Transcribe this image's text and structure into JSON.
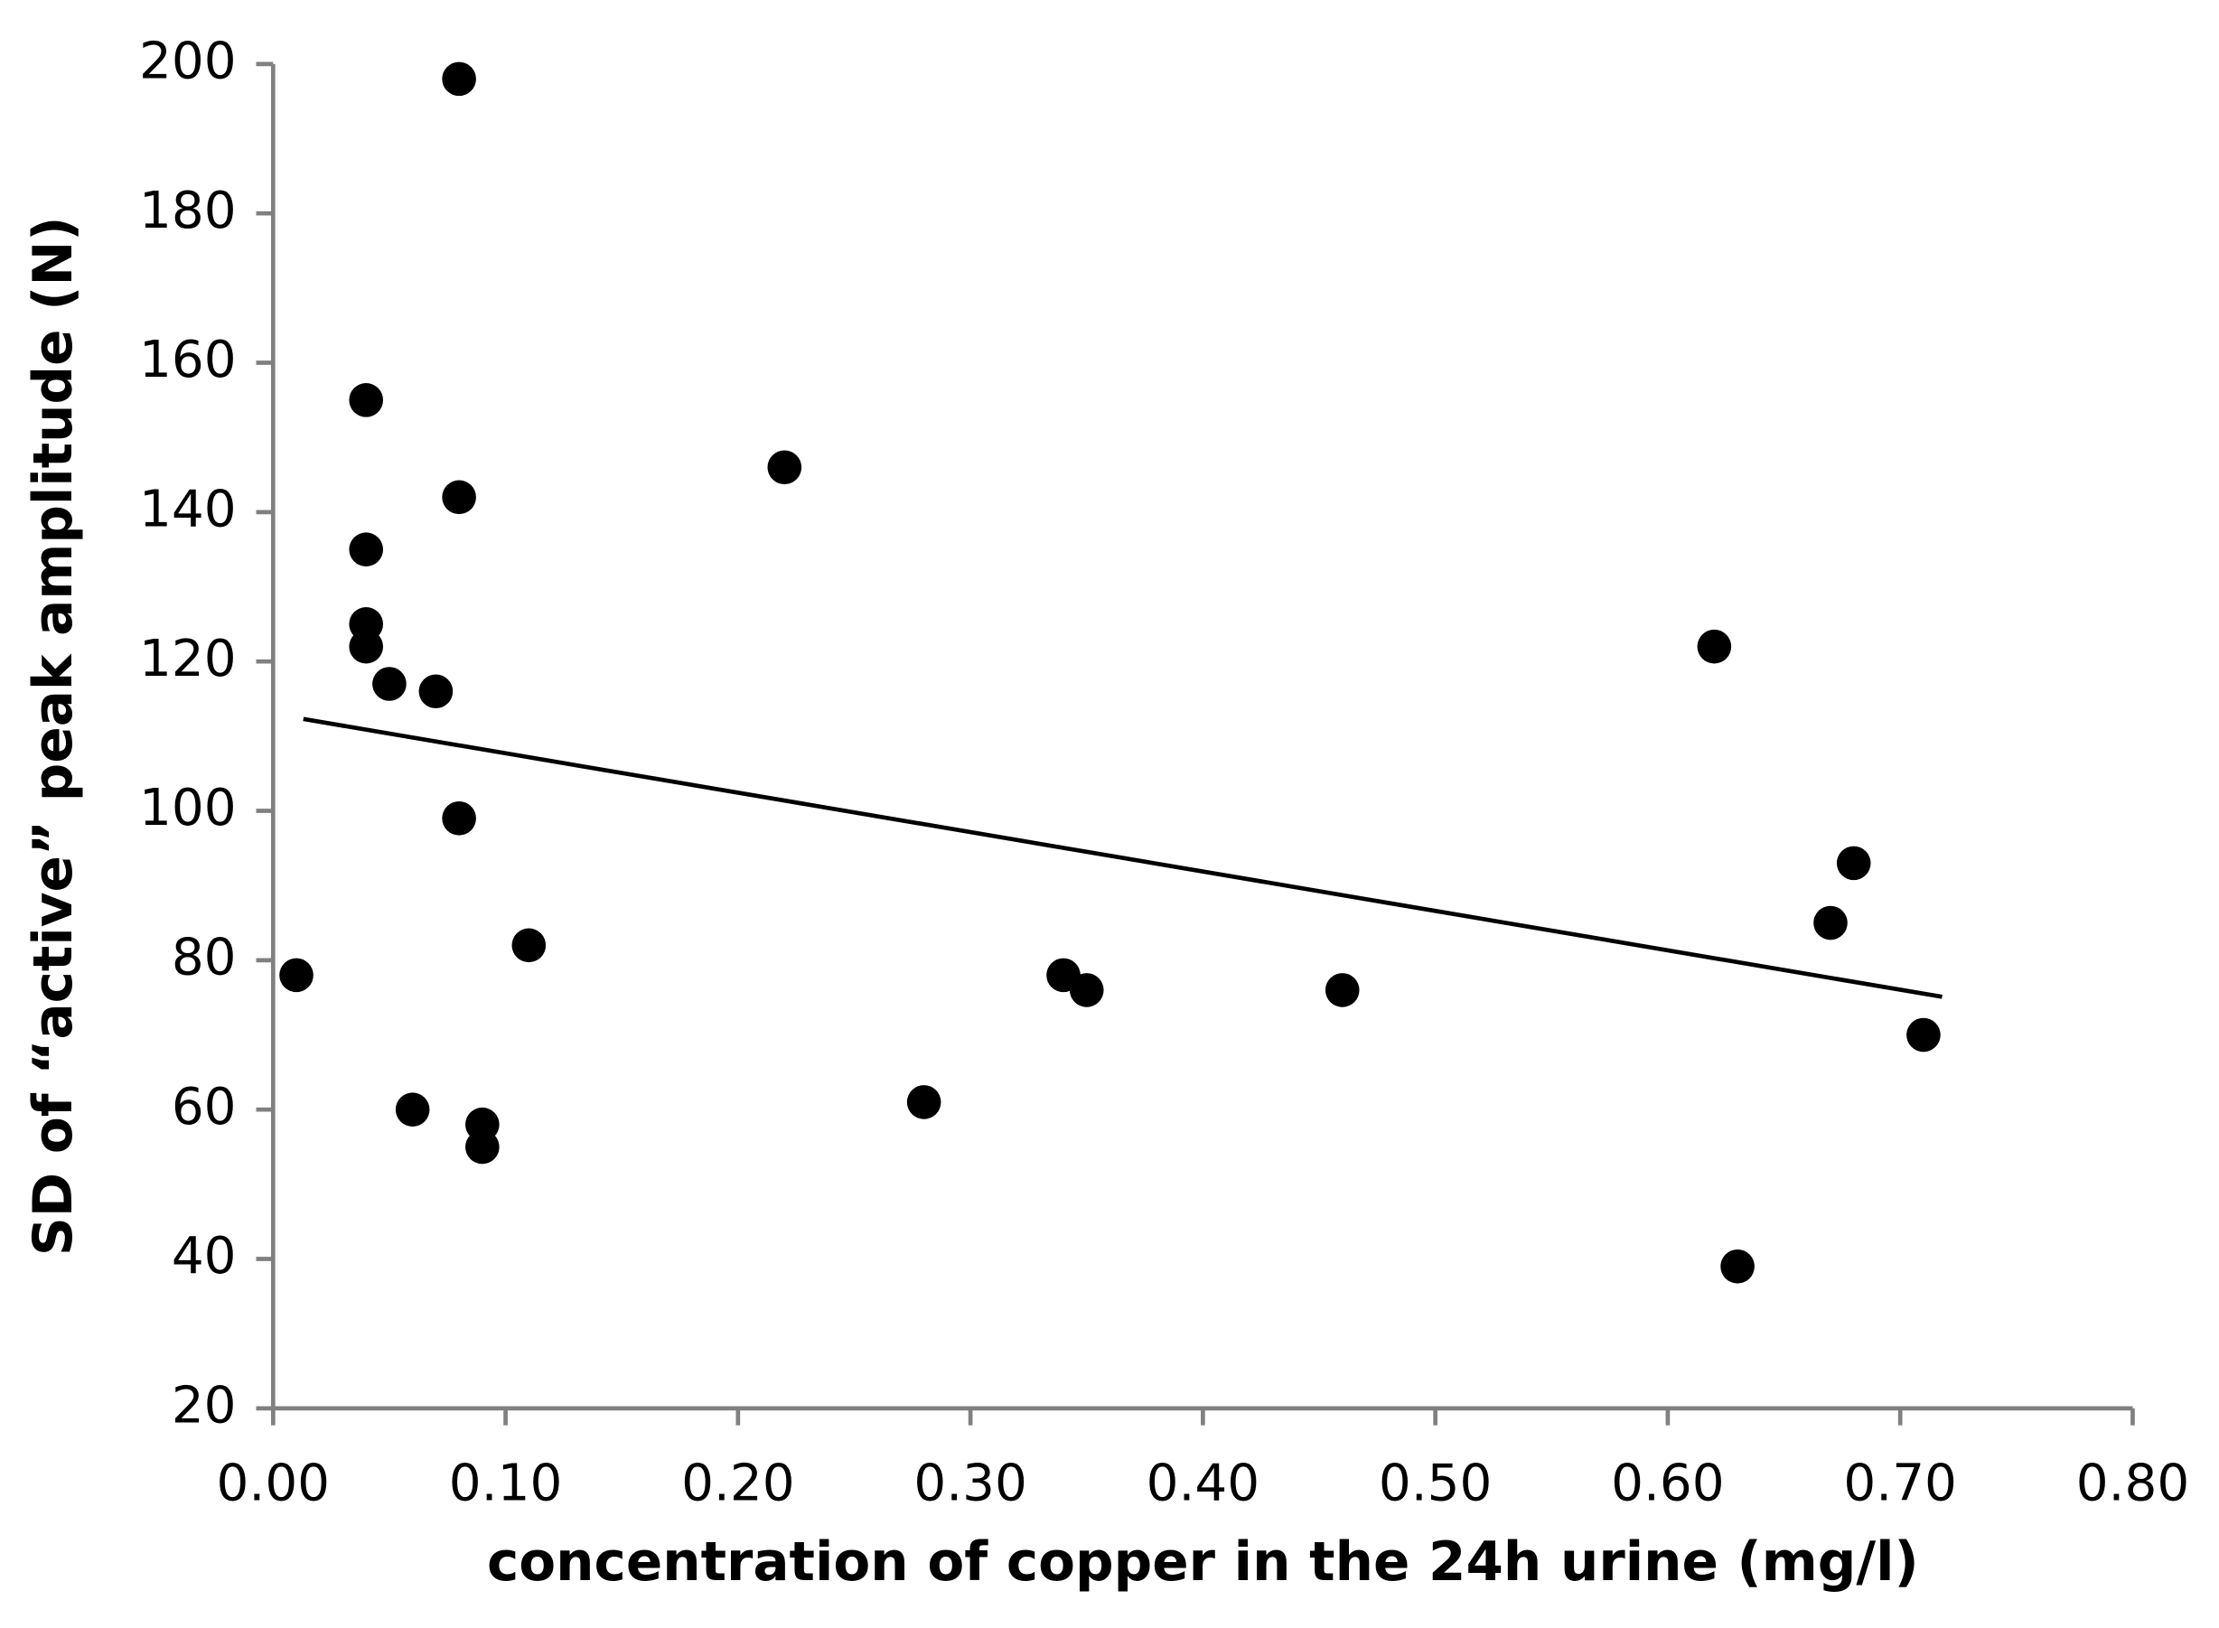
{
  "chart_data": {
    "type": "scatter",
    "x_label": "concentration of copper in the 24h urine (mg/l)",
    "y_label": "SD of “active” peak amplitude (N)",
    "xlim": [
      0,
      0.8
    ],
    "ylim": [
      20,
      200
    ],
    "xticks": [
      {
        "value": 0,
        "label": "0.00"
      },
      {
        "value": 0.1,
        "label": "0.10"
      },
      {
        "value": 0.2,
        "label": "0.20"
      },
      {
        "value": 0.3,
        "label": "0.30"
      },
      {
        "value": 0.4,
        "label": "0.40"
      },
      {
        "value": 0.5,
        "label": "0.50"
      },
      {
        "value": 0.6,
        "label": "0.60"
      },
      {
        "value": 0.7,
        "label": "0.70"
      },
      {
        "value": 0.8,
        "label": "0.80"
      }
    ],
    "yticks": [
      20,
      40,
      60,
      80,
      100,
      120,
      140,
      160,
      180,
      200
    ],
    "color": "#000000",
    "x": [
      0.01,
      0.04,
      0.04,
      0.04,
      0.04,
      0.05,
      0.06,
      0.07,
      0.08,
      0.08,
      0.08,
      0.09,
      0.09,
      0.11,
      0.22,
      0.28,
      0.34,
      0.35,
      0.46,
      0.62,
      0.63,
      0.67,
      0.68,
      0.71
    ],
    "values": [
      78,
      155,
      135,
      125,
      122,
      117,
      60,
      116,
      198,
      142,
      99,
      58,
      55,
      82,
      146,
      61,
      78,
      76,
      76,
      122,
      39,
      85,
      93,
      70
    ],
    "trendline": {
      "x": [
        0.013,
        0.718
      ],
      "values": [
        112.3,
        75.1
      ]
    }
  }
}
